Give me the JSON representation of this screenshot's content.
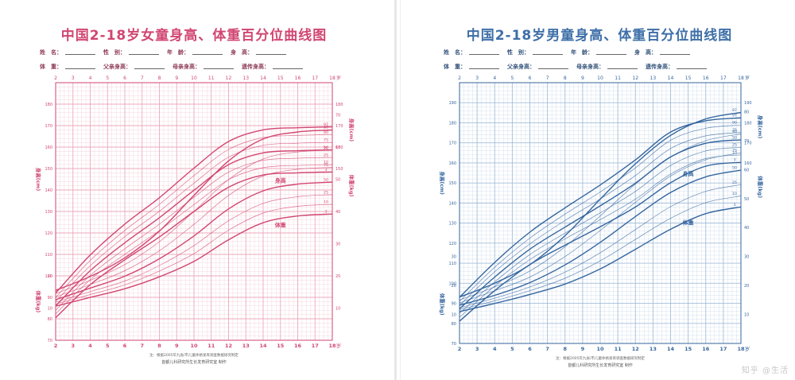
{
  "watermark": "知乎 @生活",
  "chart_data": [
    {
      "type": "line",
      "title": "中国2-18岁女童身高、体重百分位曲线图",
      "color": "#d14672",
      "grid_color": "#eaa1b6",
      "info_row1": [
        "姓　名：",
        "性　别：",
        "年　龄：",
        "身　高："
      ],
      "info_row2": [
        "体　重：",
        "父亲身高：",
        "母亲身高：",
        "遗传身高："
      ],
      "x_ticks": [
        "2",
        "3",
        "4",
        "5",
        "6",
        "7",
        "8",
        "9",
        "10",
        "11",
        "12",
        "13",
        "14",
        "15",
        "16",
        "17",
        "18"
      ],
      "x_ticks_top": [
        "2",
        "3",
        "4",
        "5",
        "6",
        "7",
        "8",
        "9",
        "10",
        "11",
        "12",
        "13",
        "14",
        "15",
        "16",
        "17",
        "18"
      ],
      "x_ticks_top_suffix": "岁",
      "x_ticks_bottom_suffix": "岁",
      "x_range": [
        2,
        18
      ],
      "height_axis_label": "身高(cm)",
      "height_axis_label_right": "身高(cm)",
      "height_range": [
        70,
        190
      ],
      "height_ticks": [
        "180",
        "170",
        "160",
        "150",
        "140",
        "130",
        "120",
        "110",
        "100",
        "90",
        "80",
        "70"
      ],
      "height_ticks_right": [
        "180",
        "170",
        "160",
        "150"
      ],
      "weight_axis_label": "体重(kg)",
      "weight_axis_label_left": "体重(kg)",
      "weight_range": [
        0,
        80
      ],
      "weight_ticks_right": [
        "70",
        "60",
        "50",
        "40",
        "30",
        "20",
        "10"
      ],
      "weight_ticks_left": [
        "20",
        "10"
      ],
      "height_series_label": "身高",
      "weight_series_label": "体重",
      "percentile_labels": [
        "97",
        "90",
        "75",
        "50",
        "25",
        "10",
        "3"
      ],
      "ages": [
        2,
        4,
        6,
        8,
        10,
        12,
        14,
        16,
        18
      ],
      "height_series": [
        {
          "name": "97",
          "values": [
            92.0,
            109.7,
            124.1,
            136.4,
            150.2,
            162.6,
            168.0,
            169.0,
            169.4
          ]
        },
        {
          "name": "90",
          "values": [
            90.0,
            107.2,
            121.2,
            133.3,
            146.7,
            158.9,
            164.4,
            165.4,
            165.8
          ]
        },
        {
          "name": "75",
          "values": [
            88.1,
            104.7,
            118.3,
            130.1,
            143.2,
            155.3,
            160.8,
            161.8,
            162.2
          ]
        },
        {
          "name": "50",
          "values": [
            86.0,
            102.4,
            115.4,
            127.1,
            139.9,
            151.8,
            157.3,
            158.3,
            158.7
          ]
        },
        {
          "name": "25",
          "values": [
            84.0,
            100.2,
            112.6,
            124.1,
            136.6,
            148.3,
            153.8,
            154.8,
            155.2
          ]
        },
        {
          "name": "10",
          "values": [
            82.3,
            98.2,
            110.0,
            121.1,
            133.2,
            144.8,
            150.4,
            151.4,
            151.8
          ]
        },
        {
          "name": "3",
          "values": [
            80.5,
            95.9,
            107.5,
            118.1,
            130.0,
            141.3,
            147.0,
            148.0,
            148.4
          ]
        }
      ],
      "weight_series": [
        {
          "name": "97",
          "values": [
            15.5,
            19.8,
            25.6,
            33.9,
            45.0,
            55.7,
            62.5,
            64.7,
            65.3
          ]
        },
        {
          "name": "90",
          "values": [
            14.5,
            18.6,
            23.5,
            30.6,
            40.0,
            49.9,
            56.3,
            58.5,
            59.0
          ]
        },
        {
          "name": "75",
          "values": [
            13.5,
            17.3,
            21.6,
            27.8,
            36.0,
            45.0,
            51.0,
            53.1,
            53.7
          ]
        },
        {
          "name": "50",
          "values": [
            12.6,
            16.2,
            19.9,
            25.3,
            32.4,
            40.8,
            46.4,
            48.5,
            49.1
          ]
        },
        {
          "name": "25",
          "values": [
            11.8,
            15.1,
            18.4,
            23.2,
            29.4,
            37.1,
            42.5,
            44.6,
            45.2
          ]
        },
        {
          "name": "10",
          "values": [
            11.2,
            14.2,
            17.2,
            21.5,
            26.9,
            34.2,
            39.5,
            41.6,
            42.2
          ]
        },
        {
          "name": "3",
          "values": [
            10.6,
            13.3,
            16.0,
            19.7,
            24.5,
            31.2,
            36.5,
            38.6,
            39.2
          ]
        }
      ],
      "footnote": "注：根据2005年九省/市儿童体格发育调查数据研究制定",
      "footnote2": "首都儿科研究所生长发育研究室 制作"
    },
    {
      "type": "line",
      "title": "中国2-18岁男童身高、体重百分位曲线图",
      "color": "#35669e",
      "grid_color": "#9cb8d8",
      "info_row1": [
        "姓　名：",
        "性　别：",
        "年　龄：",
        "身　高："
      ],
      "info_row2": [
        "体　重：",
        "父亲身高：",
        "母亲身高：",
        "遗传身高："
      ],
      "x_ticks": [
        "2",
        "3",
        "4",
        "5",
        "6",
        "7",
        "8",
        "9",
        "10",
        "11",
        "12",
        "13",
        "14",
        "15",
        "16",
        "17",
        "18"
      ],
      "x_ticks_top": [
        "2",
        "3",
        "4",
        "5",
        "6",
        "7",
        "8",
        "9",
        "10",
        "11",
        "12",
        "13",
        "14",
        "15",
        "16",
        "17",
        "18"
      ],
      "x_ticks_top_suffix": "岁",
      "x_ticks_bottom_suffix": "岁",
      "x_range": [
        2,
        18
      ],
      "height_axis_label": "身高(cm)",
      "height_axis_label_right": "身高(cm)",
      "height_range": [
        70,
        200
      ],
      "height_ticks": [
        "190",
        "180",
        "170",
        "160",
        "150",
        "140",
        "130",
        "120",
        "110",
        "100",
        "90",
        "80",
        "70"
      ],
      "height_ticks_right": [
        "190",
        "180",
        "170",
        "160"
      ],
      "weight_axis_label": "体重(kg)",
      "weight_axis_label_left": "体重(kg)",
      "weight_range": [
        0,
        90
      ],
      "weight_ticks_right": [
        "80",
        "70",
        "60",
        "50",
        "40",
        "30",
        "20",
        "10"
      ],
      "weight_ticks_left": [
        "30",
        "20",
        "10"
      ],
      "height_series_label": "身高",
      "weight_series_label": "体重",
      "percentile_labels": [
        "97",
        "90",
        "75",
        "50",
        "25",
        "10",
        "3"
      ],
      "ages": [
        2,
        4,
        6,
        8,
        10,
        12,
        14,
        16,
        18
      ],
      "height_series": [
        {
          "name": "97",
          "values": [
            93.0,
            110.4,
            125.5,
            137.6,
            149.0,
            161.5,
            175.4,
            181.0,
            182.5
          ]
        },
        {
          "name": "90",
          "values": [
            91.0,
            108.0,
            122.5,
            134.5,
            145.5,
            157.5,
            171.3,
            177.3,
            178.9
          ]
        },
        {
          "name": "75",
          "values": [
            89.0,
            105.7,
            119.6,
            131.3,
            142.0,
            153.7,
            167.2,
            173.5,
            175.2
          ]
        },
        {
          "name": "50",
          "values": [
            87.2,
            103.1,
            117.0,
            128.0,
            138.6,
            149.9,
            163.0,
            169.8,
            171.5
          ]
        },
        {
          "name": "25",
          "values": [
            85.0,
            100.7,
            114.3,
            125.0,
            135.1,
            145.8,
            158.7,
            166.0,
            167.8
          ]
        },
        {
          "name": "10",
          "values": [
            83.0,
            98.6,
            111.8,
            122.1,
            131.7,
            141.9,
            154.4,
            162.2,
            164.0
          ]
        },
        {
          "name": "3",
          "values": [
            81.1,
            96.3,
            109.3,
            119.0,
            128.2,
            138.0,
            150.1,
            158.4,
            160.3
          ]
        }
      ],
      "weight_series": [
        {
          "name": "97",
          "values": [
            16.0,
            20.8,
            27.2,
            37.2,
            49.8,
            62.0,
            71.8,
            77.5,
            79.7
          ]
        },
        {
          "name": "90",
          "values": [
            15.0,
            19.5,
            25.0,
            33.4,
            44.0,
            55.0,
            64.3,
            70.0,
            72.3
          ]
        },
        {
          "name": "75",
          "values": [
            14.0,
            18.2,
            22.9,
            30.0,
            39.0,
            48.7,
            57.8,
            63.4,
            65.8
          ]
        },
        {
          "name": "50",
          "values": [
            13.2,
            16.6,
            21.0,
            27.1,
            34.9,
            43.8,
            52.1,
            57.5,
            59.8
          ]
        },
        {
          "name": "25",
          "values": [
            12.3,
            15.6,
            19.5,
            24.6,
            31.3,
            39.3,
            47.2,
            52.5,
            54.8
          ]
        },
        {
          "name": "10",
          "values": [
            11.7,
            14.7,
            18.2,
            22.5,
            28.5,
            35.9,
            43.2,
            48.6,
            50.9
          ]
        },
        {
          "name": "3",
          "values": [
            11.0,
            13.8,
            16.9,
            20.5,
            25.7,
            32.5,
            39.4,
            44.8,
            47.1
          ]
        }
      ],
      "footnote": "注：根据2005年九省/市儿童体格发育调查数据研究制定",
      "footnote2": "首都儿科研究所生长发育研究室 制作"
    }
  ]
}
